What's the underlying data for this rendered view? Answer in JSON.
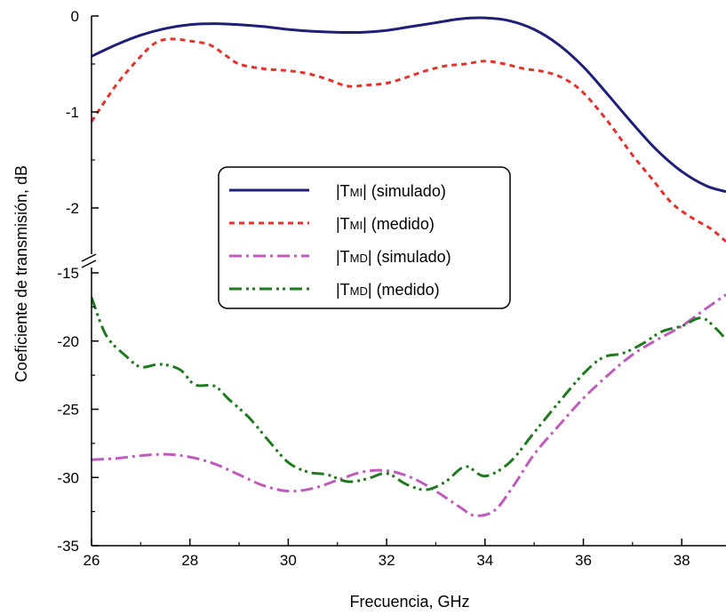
{
  "chart_data": {
    "type": "line",
    "xlabel": "Frecuencia, GHz",
    "ylabel": "Coeficiente de transmisión, dB",
    "xlim": [
      26,
      38.9
    ],
    "x_ticks": [
      26,
      28,
      30,
      32,
      34,
      36,
      38
    ],
    "grid": false,
    "legend_position": "center",
    "axis_break": true,
    "upper_panel": {
      "ylim": [
        -2.5,
        0
      ],
      "y_ticks": [
        0,
        -1,
        -2
      ]
    },
    "lower_panel": {
      "ylim": [
        -35,
        -15
      ],
      "y_ticks": [
        -15,
        -20,
        -25,
        -30,
        -35
      ]
    },
    "series": [
      {
        "name": "|TMI| (simulado)",
        "legend_prefix": "|T",
        "legend_sub": "MI",
        "legend_suffix": "| (simulado)",
        "panel": "upper",
        "color": "#1f1f7a",
        "dash": "",
        "x": [
          26,
          26.5,
          27,
          27.5,
          28,
          28.5,
          29,
          29.5,
          30,
          30.5,
          31,
          31.5,
          32,
          32.5,
          33,
          33.5,
          34,
          34.5,
          35,
          35.5,
          36,
          36.5,
          37,
          37.5,
          38,
          38.5,
          38.9
        ],
        "y": [
          -0.42,
          -0.3,
          -0.2,
          -0.13,
          -0.09,
          -0.08,
          -0.09,
          -0.11,
          -0.14,
          -0.16,
          -0.17,
          -0.17,
          -0.15,
          -0.11,
          -0.07,
          -0.03,
          -0.02,
          -0.05,
          -0.14,
          -0.3,
          -0.53,
          -0.82,
          -1.12,
          -1.4,
          -1.62,
          -1.77,
          -1.83
        ]
      },
      {
        "name": "|TMI| (medido)",
        "legend_prefix": "|T",
        "legend_sub": "MI",
        "legend_suffix": "| (medido)",
        "panel": "upper",
        "color": "#e8312a",
        "dash": "6,5",
        "x": [
          26,
          26.5,
          27,
          27.3,
          27.6,
          28,
          28.4,
          28.7,
          29,
          29.5,
          30,
          30.4,
          30.8,
          31.2,
          31.6,
          32,
          32.4,
          32.8,
          33.2,
          33.6,
          34,
          34.4,
          34.8,
          35.2,
          35.6,
          36,
          36.5,
          37,
          37.4,
          37.8,
          38.2,
          38.6,
          38.9
        ],
        "y": [
          -1.1,
          -0.72,
          -0.42,
          -0.28,
          -0.24,
          -0.26,
          -0.3,
          -0.4,
          -0.5,
          -0.55,
          -0.57,
          -0.6,
          -0.66,
          -0.73,
          -0.72,
          -0.7,
          -0.64,
          -0.57,
          -0.52,
          -0.5,
          -0.47,
          -0.5,
          -0.55,
          -0.58,
          -0.65,
          -0.8,
          -1.1,
          -1.45,
          -1.7,
          -1.95,
          -2.1,
          -2.22,
          -2.35
        ]
      },
      {
        "name": "|TMD| (simulado)",
        "legend_prefix": "|T",
        "legend_sub": "MD",
        "legend_suffix": "| (simulado)",
        "panel": "lower",
        "color": "#bf5bbd",
        "dash": "14,5,3,5",
        "x": [
          26,
          26.5,
          27,
          27.5,
          28,
          28.5,
          29,
          29.5,
          30,
          30.5,
          31,
          31.5,
          32,
          32.5,
          33,
          33.5,
          33.8,
          34.2,
          34.6,
          35,
          35.5,
          36,
          36.5,
          37,
          37.5,
          38,
          38.5,
          38.9
        ],
        "y": [
          -28.7,
          -28.6,
          -28.4,
          -28.3,
          -28.5,
          -29.0,
          -29.8,
          -30.6,
          -31.0,
          -30.8,
          -30.2,
          -29.6,
          -29.5,
          -30.0,
          -31.0,
          -32.2,
          -32.8,
          -32.4,
          -30.5,
          -28.3,
          -26.2,
          -24.2,
          -22.5,
          -21.0,
          -19.9,
          -18.9,
          -17.6,
          -16.6
        ]
      },
      {
        "name": "|TMD| (medido)",
        "legend_prefix": "|T",
        "legend_sub": "MD",
        "legend_suffix": "| (medido)",
        "panel": "lower",
        "color": "#1f7a1f",
        "dash": "14,5,3,4,3,5",
        "x": [
          26,
          26.3,
          26.7,
          27,
          27.4,
          27.8,
          28.1,
          28.5,
          28.8,
          29.2,
          29.6,
          30,
          30.4,
          30.8,
          31.2,
          31.6,
          32,
          32.4,
          32.8,
          33.2,
          33.6,
          34,
          34.5,
          35,
          35.5,
          36,
          36.4,
          36.8,
          37.2,
          37.6,
          38,
          38.4,
          38.7,
          38.9
        ],
        "y": [
          -16.8,
          -19.6,
          -21.1,
          -21.9,
          -21.7,
          -22.1,
          -23.2,
          -23.3,
          -24.3,
          -25.6,
          -27.3,
          -28.9,
          -29.6,
          -29.8,
          -30.3,
          -30.1,
          -29.7,
          -30.5,
          -30.9,
          -30.3,
          -29.2,
          -29.9,
          -28.9,
          -26.7,
          -24.5,
          -22.4,
          -21.2,
          -20.9,
          -20.2,
          -19.3,
          -18.9,
          -18.3,
          -19.1,
          -19.9
        ]
      }
    ]
  }
}
